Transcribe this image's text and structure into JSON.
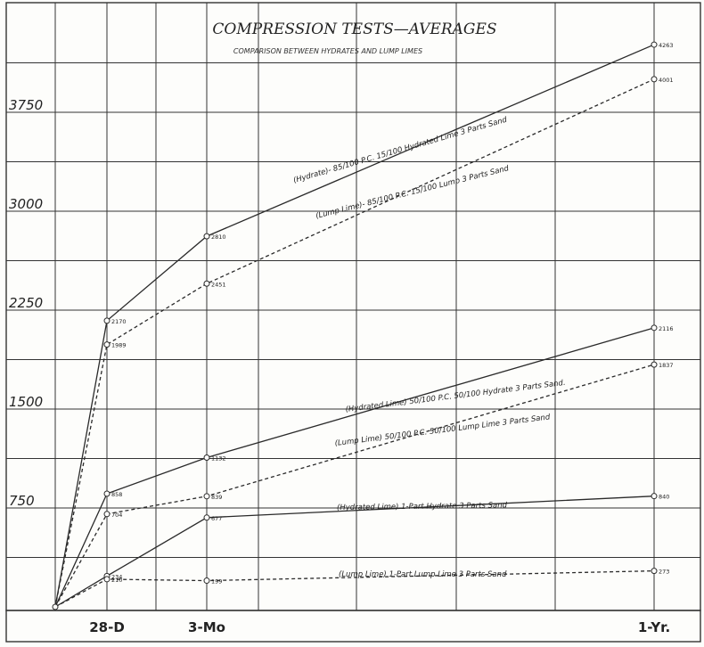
{
  "chart_data": {
    "type": "line",
    "title": "COMPRESSION TESTS—AVERAGES",
    "subtitle": "COMPARISON BETWEEN HYDRATES AND LUMP LIMES",
    "x": [
      "",
      "28-D",
      "3-Mo",
      "1-Yr."
    ],
    "x_days": [
      0,
      28,
      90,
      365
    ],
    "ylim": [
      0,
      4400
    ],
    "yticks": [
      750,
      1500,
      2250,
      3000,
      3750
    ],
    "grid": true,
    "series": [
      {
        "name": "(Hydrate)- 85/100 P.C. 15/100 Hydrated Lime 3 Parts Sand",
        "style": "solid",
        "values": [
          0,
          2170,
          2810,
          4263
        ],
        "labels": [
          "",
          "2170",
          "2810",
          "4263"
        ]
      },
      {
        "name": "(Lump Lime)- 85/100 P.C. 15/100 Lump 3 Parts Sand",
        "style": "dashed",
        "values": [
          0,
          1989,
          2451,
          4001
        ],
        "labels": [
          "",
          "1989",
          "2451",
          "4001"
        ]
      },
      {
        "name": "(Hydrated Lime) 50/100 P.C. 50/100 Hydrate 3 Parts Sand.",
        "style": "solid",
        "values": [
          0,
          858,
          1132,
          2116
        ],
        "labels": [
          "",
          "858",
          "1132",
          "2116"
        ]
      },
      {
        "name": "(Lump Lime) 50/100 P.C. 50/100 Lump Lime 3 Parts Sand",
        "style": "dashed",
        "values": [
          0,
          704,
          839,
          1837
        ],
        "labels": [
          "",
          "704",
          "839",
          "1837"
        ]
      },
      {
        "name": "(Hydrated Lime) 1-Part Hydrate 3 Parts Sand",
        "style": "solid",
        "values": [
          0,
          234,
          677,
          840
        ],
        "labels": [
          "",
          "234",
          "677",
          "840"
        ]
      },
      {
        "name": "(Lump Lime) 1-Part Lump Lime 3 Parts Sand",
        "style": "dashed",
        "values": [
          0,
          210,
          199,
          273
        ],
        "labels": [
          "",
          "210",
          "199",
          "273"
        ]
      }
    ]
  },
  "colors": {
    "ink": "#2a2a2a",
    "paper": "#fdfdfb"
  }
}
